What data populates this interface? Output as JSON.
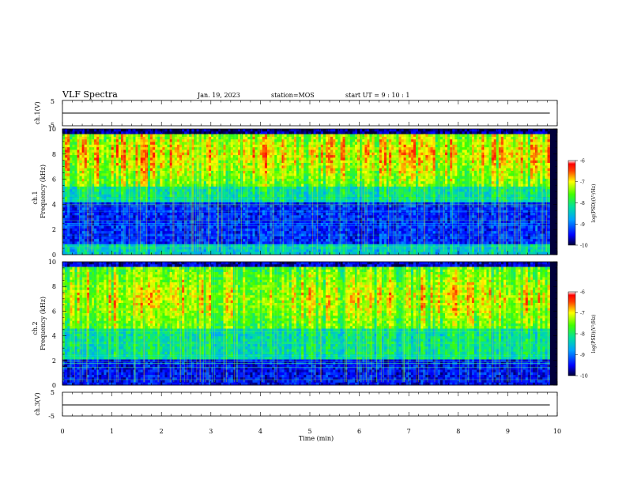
{
  "header": {
    "title": "VLF Spectra",
    "date": "Jan. 19, 2023",
    "station": "station=MOS",
    "start": "start  UT =   9 : 10 : 1"
  },
  "chart_data": [
    {
      "type": "line",
      "panel": "ch1-amplitude",
      "ylabel": "ch.1(V)",
      "ylim": [
        -5,
        5
      ],
      "yticks": [
        "5",
        "-5"
      ],
      "level": -0.3
    },
    {
      "type": "heatmap",
      "panel": "ch1-spectrogram",
      "ylabel": "ch.1\nFrequency (kHz)",
      "ylim": [
        0,
        10
      ],
      "yticks": [
        "0",
        "2",
        "4",
        "6",
        "8",
        "10"
      ],
      "colorbar": {
        "label": "log(PSD)(V²/Hz)",
        "range": [
          -10,
          -6
        ],
        "ticks": [
          "-6",
          "-7",
          "-8",
          "-9",
          "-10"
        ]
      }
    },
    {
      "type": "heatmap",
      "panel": "ch2-spectrogram",
      "ylabel": "ch.2\nFrequency (kHz)",
      "ylim": [
        0,
        10
      ],
      "yticks": [
        "0",
        "2",
        "4",
        "6",
        "8",
        "10"
      ],
      "colorbar": {
        "label": "log(PSD)(V²/Hz)",
        "range": [
          -10,
          -6
        ],
        "ticks": [
          "-6",
          "-7",
          "-8",
          "-9",
          "-10"
        ]
      }
    },
    {
      "type": "line",
      "panel": "ch3-amplitude",
      "ylabel": "ch.3(V)",
      "ylim": [
        -5,
        5
      ],
      "yticks": [
        "5",
        "-5"
      ],
      "level": -0.3
    }
  ],
  "xaxis": {
    "label": "Time (min)",
    "xlim": [
      0,
      10
    ],
    "ticks": [
      "0",
      "1",
      "2",
      "3",
      "4",
      "5",
      "6",
      "7",
      "8",
      "9",
      "10"
    ],
    "data_end": 9.85
  }
}
